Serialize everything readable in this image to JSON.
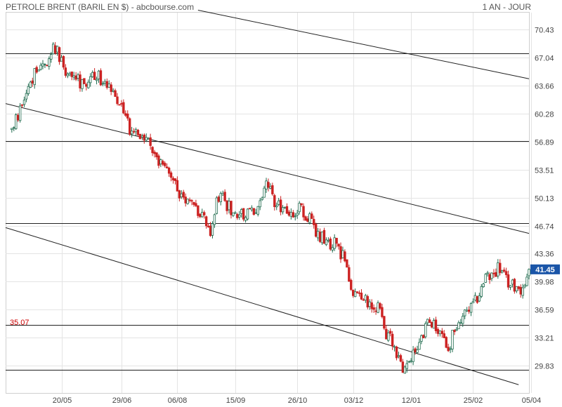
{
  "header": {
    "title": "PETROLE BRENT (BARIL EN $) - abcbourse.com",
    "period": "1 AN - JOUR"
  },
  "colors": {
    "up": "#1f6b4e",
    "down": "#cc2222",
    "grid": "#e4e4e4",
    "line": "#222222",
    "support_label": "#cc0000",
    "last_price_bg": "#1a55a8"
  },
  "chart_data": {
    "type": "candlestick",
    "ylim": [
      26.5,
      72.5
    ],
    "xlim": [
      -3,
      250
    ],
    "y_ticks": [
      "70.43",
      "67.04",
      "63.66",
      "60.28",
      "56.89",
      "53.51",
      "50.13",
      "46.74",
      "43.36",
      "39.98",
      "36.59",
      "33.21",
      "29.83"
    ],
    "x_ticks": [
      {
        "label": "20/05",
        "index": 24
      },
      {
        "label": "29/06",
        "index": 53
      },
      {
        "label": "06/08",
        "index": 80
      },
      {
        "label": "15/09",
        "index": 108
      },
      {
        "label": "26/10",
        "index": 138
      },
      {
        "label": "03/12",
        "index": 165
      },
      {
        "label": "12/01",
        "index": 193
      },
      {
        "label": "25/02",
        "index": 223
      },
      {
        "label": "05/04",
        "index": 251
      }
    ],
    "horizontal_lines": [
      67.6,
      57.0,
      47.0,
      34.7,
      29.3
    ],
    "support_label": {
      "text": "35.07",
      "value": 35.07
    },
    "last_price": {
      "text": "41.45",
      "value": 41.45
    },
    "trendlines": [
      {
        "x1": 90,
        "y1": 72.8,
        "x2": 250,
        "y2": 64.5
      },
      {
        "x1": -3,
        "y1": 61.5,
        "x2": 250,
        "y2": 45.8
      },
      {
        "x1": -3,
        "y1": 46.5,
        "x2": 245,
        "y2": 27.5
      }
    ],
    "anchors": [
      [
        0,
        58.5
      ],
      [
        4,
        60.5
      ],
      [
        7,
        63.5
      ],
      [
        11,
        65
      ],
      [
        15,
        66.5
      ],
      [
        18,
        67
      ],
      [
        20,
        68
      ],
      [
        22,
        67.8
      ],
      [
        26,
        65.5
      ],
      [
        30,
        64.5
      ],
      [
        34,
        64
      ],
      [
        38,
        64.5
      ],
      [
        42,
        64.7
      ],
      [
        46,
        63.3
      ],
      [
        50,
        62.5
      ],
      [
        53,
        61.8
      ],
      [
        55,
        59.5
      ],
      [
        58,
        58
      ],
      [
        62,
        57.5
      ],
      [
        66,
        56.6
      ],
      [
        70,
        55
      ],
      [
        74,
        53.5
      ],
      [
        78,
        52.5
      ],
      [
        81,
        50
      ],
      [
        84,
        49.5
      ],
      [
        88,
        49
      ],
      [
        92,
        48
      ],
      [
        96,
        45.5
      ],
      [
        99,
        49.5
      ],
      [
        102,
        50
      ],
      [
        105,
        49
      ],
      [
        108,
        48.5
      ],
      [
        112,
        48
      ],
      [
        116,
        48.5
      ],
      [
        120,
        49
      ],
      [
        123,
        52
      ],
      [
        126,
        50
      ],
      [
        129,
        49
      ],
      [
        132,
        48.5
      ],
      [
        135,
        48
      ],
      [
        138,
        49
      ],
      [
        141,
        48.5
      ],
      [
        144,
        47.5
      ],
      [
        147,
        46
      ],
      [
        151,
        45
      ],
      [
        154,
        44.5
      ],
      [
        157,
        44.5
      ],
      [
        160,
        43
      ],
      [
        163,
        40
      ],
      [
        166,
        38.5
      ],
      [
        169,
        37.5
      ],
      [
        172,
        37.5
      ],
      [
        175,
        37
      ],
      [
        178,
        37.5
      ],
      [
        181,
        33.8
      ],
      [
        184,
        32.5
      ],
      [
        187,
        30.5
      ],
      [
        189,
        28.8
      ],
      [
        192,
        30
      ],
      [
        195,
        32
      ],
      [
        198,
        33.5
      ],
      [
        201,
        34.8
      ],
      [
        204,
        35
      ],
      [
        207,
        34
      ],
      [
        209,
        33.5
      ],
      [
        211,
        31
      ],
      [
        213,
        33.5
      ],
      [
        216,
        35
      ],
      [
        219,
        36
      ],
      [
        223,
        37
      ],
      [
        226,
        38.5
      ],
      [
        229,
        40.5
      ],
      [
        232,
        40.5
      ],
      [
        235,
        41.8
      ],
      [
        238,
        40.5
      ],
      [
        241,
        39.5
      ],
      [
        244,
        39.5
      ],
      [
        247,
        39
      ],
      [
        250,
        41.45
      ]
    ]
  }
}
